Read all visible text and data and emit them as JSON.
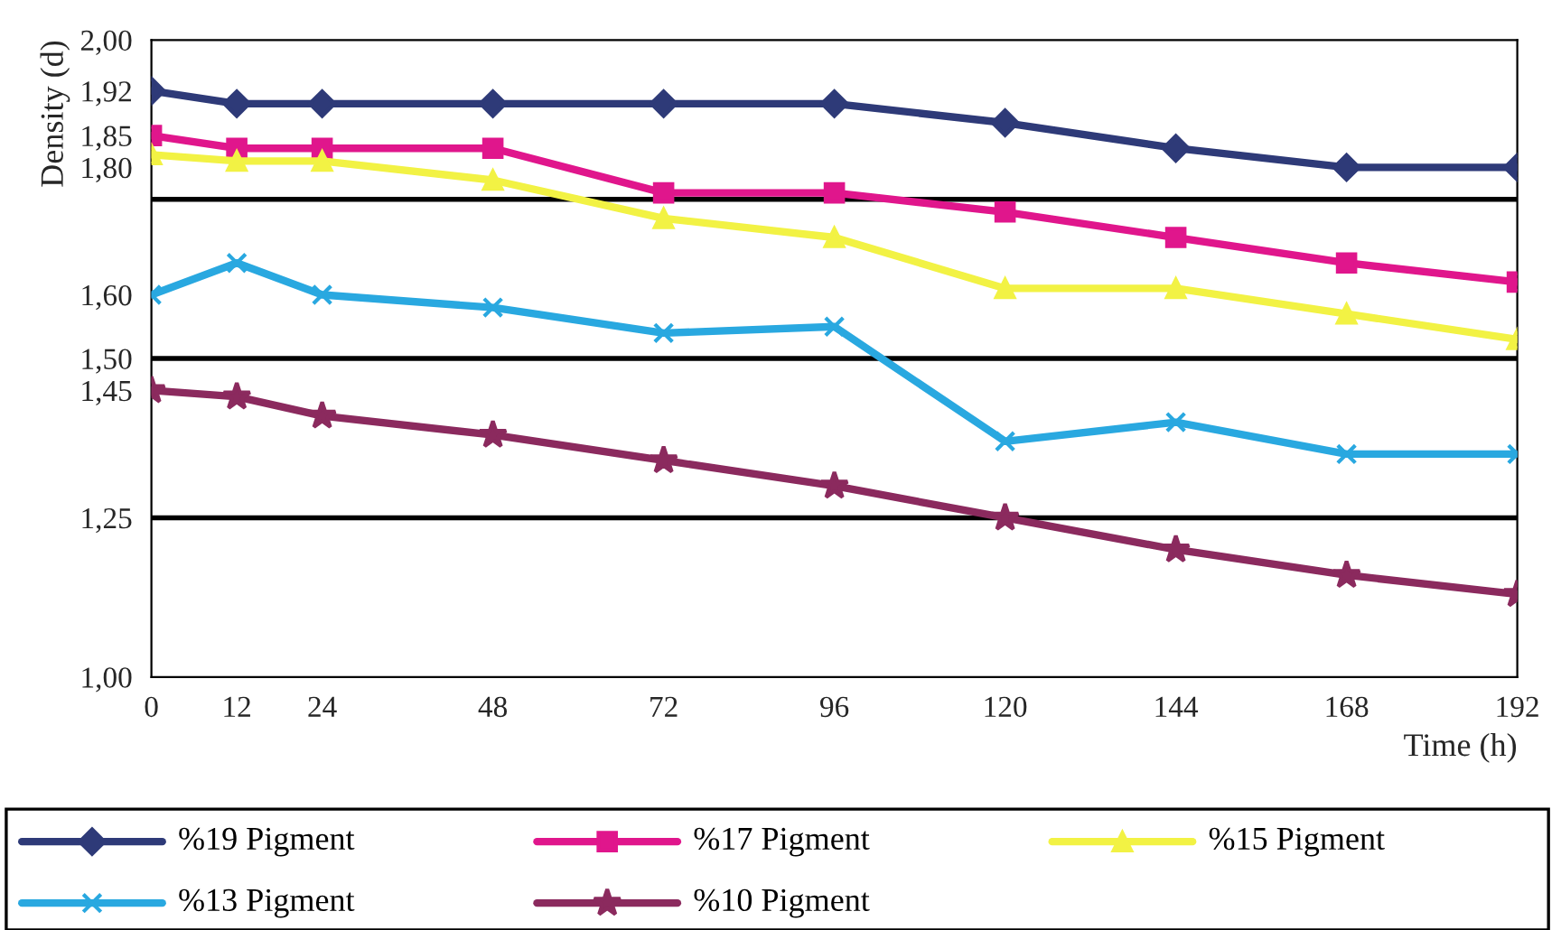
{
  "chart_data": {
    "type": "line",
    "xlabel": "Time (h)",
    "ylabel": "Density (d)",
    "x": [
      0,
      12,
      24,
      48,
      72,
      96,
      120,
      144,
      168,
      192
    ],
    "series": [
      {
        "name": "%19 Pigment",
        "color": "#2e3a78",
        "marker": "diamond",
        "values": [
          1.92,
          1.9,
          1.9,
          1.9,
          1.9,
          1.9,
          1.87,
          1.83,
          1.8,
          1.8
        ]
      },
      {
        "name": "%17 Pigment",
        "color": "#e0168c",
        "marker": "square",
        "values": [
          1.85,
          1.83,
          1.83,
          1.83,
          1.76,
          1.76,
          1.73,
          1.69,
          1.65,
          1.62
        ]
      },
      {
        "name": "%15 Pigment",
        "color": "#f2f244",
        "marker": "triangle",
        "values": [
          1.82,
          1.81,
          1.81,
          1.78,
          1.72,
          1.69,
          1.61,
          1.61,
          1.57,
          1.53
        ]
      },
      {
        "name": "%13 Pigment",
        "color": "#29a8e0",
        "marker": "cross",
        "values": [
          1.6,
          1.65,
          1.6,
          1.58,
          1.54,
          1.55,
          1.37,
          1.4,
          1.35,
          1.35
        ]
      },
      {
        "name": "%10 Pigment",
        "color": "#8b2a5e",
        "marker": "star",
        "values": [
          1.45,
          1.44,
          1.41,
          1.38,
          1.34,
          1.3,
          1.25,
          1.2,
          1.16,
          1.13
        ]
      }
    ],
    "xlim": [
      0,
      192
    ],
    "xticks": [
      0,
      12,
      24,
      48,
      72,
      96,
      120,
      144,
      168,
      192
    ],
    "ylim": [
      1.0,
      2.0
    ],
    "yticks": [
      {
        "value": 1.0,
        "label": "1,00"
      },
      {
        "value": 1.25,
        "label": "1,25"
      },
      {
        "value": 1.45,
        "label": "1,45"
      },
      {
        "value": 1.5,
        "label": "1,50"
      },
      {
        "value": 1.6,
        "label": "1,60"
      },
      {
        "value": 1.8,
        "label": "1,80"
      },
      {
        "value": 1.85,
        "label": "1,85"
      },
      {
        "value": 1.92,
        "label": "1,92"
      },
      {
        "value": 2.0,
        "label": "2,00"
      }
    ],
    "ref_lines": [
      {
        "axis": "y",
        "value": 1.25,
        "color": "#000000"
      },
      {
        "axis": "y",
        "value": 1.5,
        "color": "#000000"
      },
      {
        "axis": "y",
        "value": 1.75,
        "color": "#000000"
      }
    ],
    "grid": false,
    "legend": "bottom",
    "line_style": "solid"
  }
}
